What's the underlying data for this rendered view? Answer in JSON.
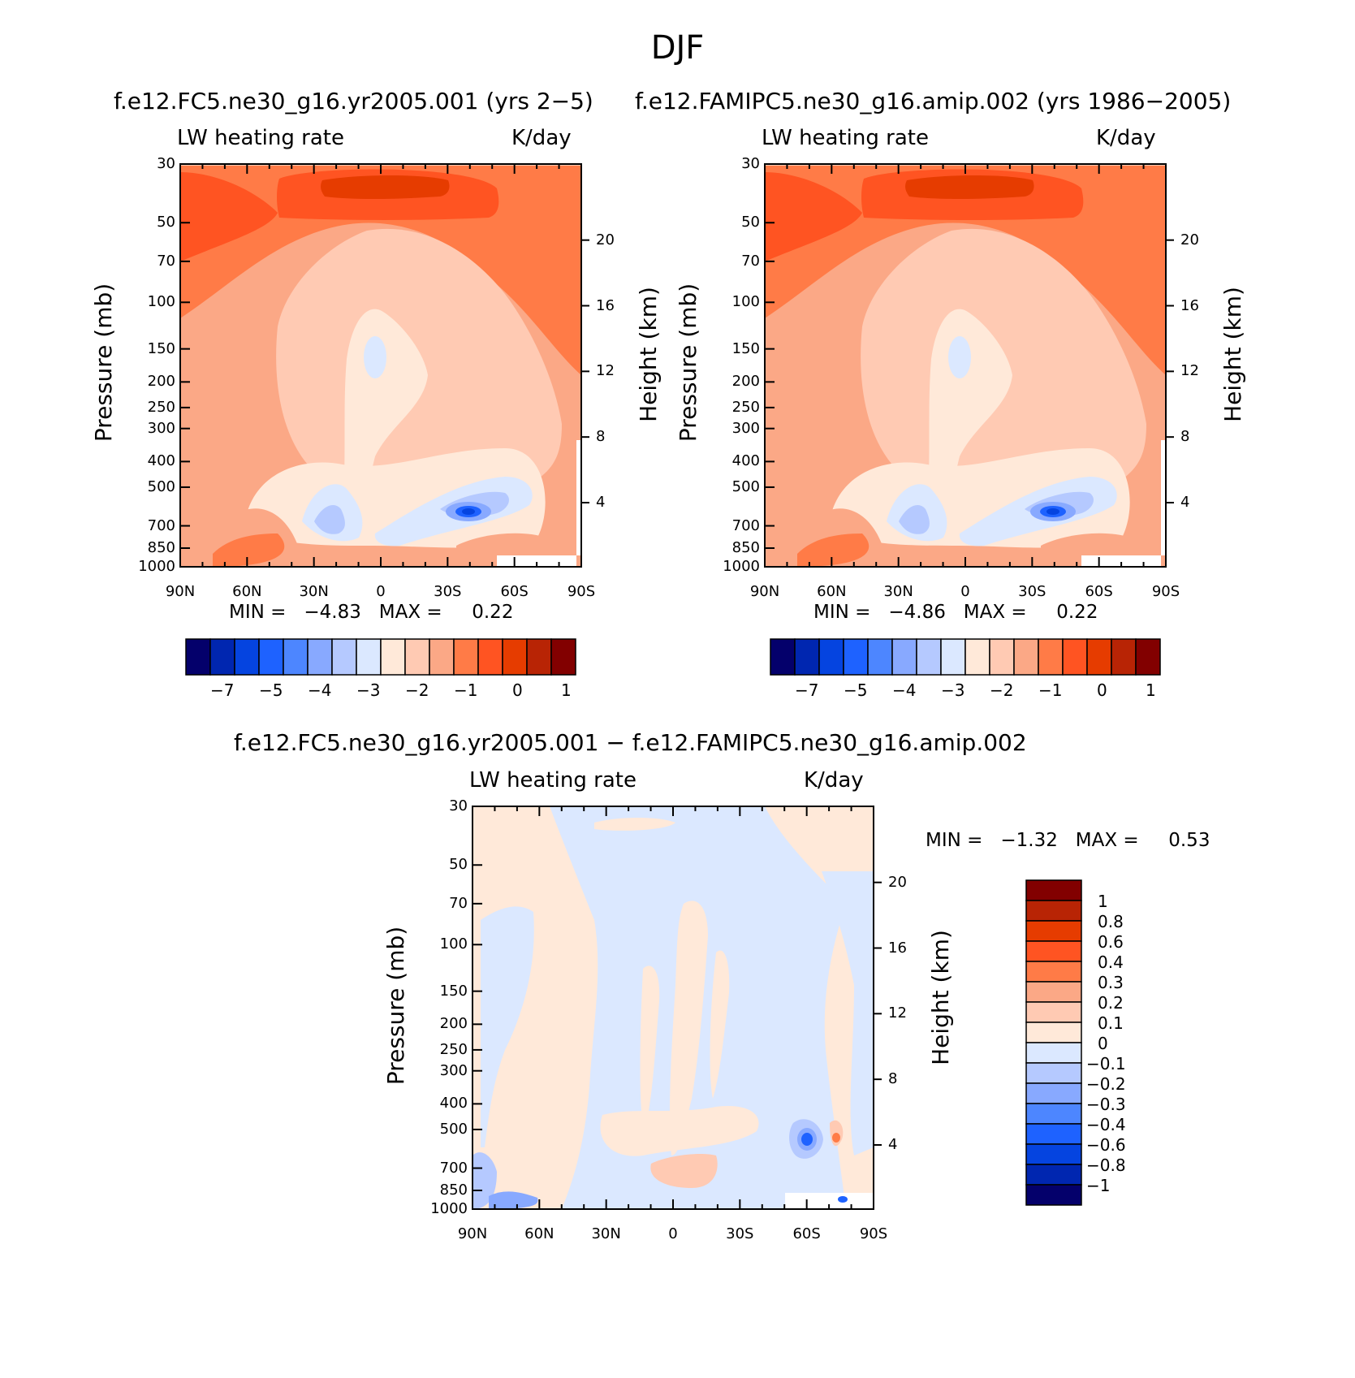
{
  "page": {
    "title": "DJF"
  },
  "colors": {
    "full_scale": [
      "#04006b",
      "#0026b0",
      "#0544e0",
      "#1e62ff",
      "#4d86ff",
      "#88a9ff",
      "#b5c9ff",
      "#dbe8ff",
      "#ffe9d9",
      "#ffcab3",
      "#fba886",
      "#ff7b47",
      "#ff5422",
      "#e63c00",
      "#b82405",
      "#820000"
    ],
    "diff_scale": [
      "#04006b",
      "#0026b0",
      "#0544e0",
      "#1e62ff",
      "#4d86ff",
      "#88a9ff",
      "#b5c9ff",
      "#dbe8ff",
      "#ffe9d9",
      "#ffcab3",
      "#fba886",
      "#ff7b47",
      "#ff5422",
      "#e63c00",
      "#b82405",
      "#820000"
    ]
  },
  "chart_data": [
    {
      "type": "heatmap",
      "id": "panel-1",
      "title": "f.e12.FC5.ne30_g16.yr2005.001 (yrs 2−5)",
      "field_label": "LW heating rate",
      "units": "K/day",
      "xlabel": "",
      "ylabel": "Pressure (mb)",
      "y2label": "Height (km)",
      "x_ticks": [
        "90N",
        "60N",
        "30N",
        "0",
        "30S",
        "60S",
        "90S"
      ],
      "y_ticks": [
        "30",
        "50",
        "70",
        "100",
        "150",
        "200",
        "250",
        "300",
        "400",
        "500",
        "700",
        "850",
        "1000"
      ],
      "y2_ticks": [
        "20",
        "16",
        "12",
        "8",
        "4"
      ],
      "min_text": "MIN =   −4.83   MAX =     0.22",
      "min": -4.83,
      "max": 0.22,
      "colorbar_labels": [
        "−7",
        "−5",
        "−4",
        "−3",
        "−2",
        "−1",
        "0",
        "1"
      ]
    },
    {
      "type": "heatmap",
      "id": "panel-2",
      "title": "f.e12.FAMIPC5.ne30_g16.amip.002 (yrs 1986−2005)",
      "field_label": "LW heating rate",
      "units": "K/day",
      "xlabel": "",
      "ylabel": "Pressure (mb)",
      "y2label": "Height (km)",
      "x_ticks": [
        "90N",
        "60N",
        "30N",
        "0",
        "30S",
        "60S",
        "90S"
      ],
      "y_ticks": [
        "30",
        "50",
        "70",
        "100",
        "150",
        "200",
        "250",
        "300",
        "400",
        "500",
        "700",
        "850",
        "1000"
      ],
      "y2_ticks": [
        "20",
        "16",
        "12",
        "8",
        "4"
      ],
      "min_text": "MIN =   −4.86   MAX =     0.22",
      "min": -4.86,
      "max": 0.22,
      "colorbar_labels": [
        "−7",
        "−5",
        "−4",
        "−3",
        "−2",
        "−1",
        "0",
        "1"
      ]
    },
    {
      "type": "heatmap",
      "id": "panel-diff",
      "title": "f.e12.FC5.ne30_g16.yr2005.001 − f.e12.FAMIPC5.ne30_g16.amip.002",
      "field_label": "LW heating rate",
      "units": "K/day",
      "xlabel": "",
      "ylabel": "Pressure (mb)",
      "y2label": "Height (km)",
      "x_ticks": [
        "90N",
        "60N",
        "30N",
        "0",
        "30S",
        "60S",
        "90S"
      ],
      "y_ticks": [
        "30",
        "50",
        "70",
        "100",
        "150",
        "200",
        "250",
        "300",
        "400",
        "500",
        "700",
        "850",
        "1000"
      ],
      "y2_ticks": [
        "20",
        "16",
        "12",
        "8",
        "4"
      ],
      "min_text": "MIN =   −1.32   MAX =     0.53",
      "min": -1.32,
      "max": 0.53,
      "colorbar_labels": [
        "1",
        "0.8",
        "0.6",
        "0.4",
        "0.3",
        "0.2",
        "0.1",
        "0",
        "−0.1",
        "−0.2",
        "−0.3",
        "−0.4",
        "−0.6",
        "−0.8",
        "−1"
      ]
    }
  ]
}
